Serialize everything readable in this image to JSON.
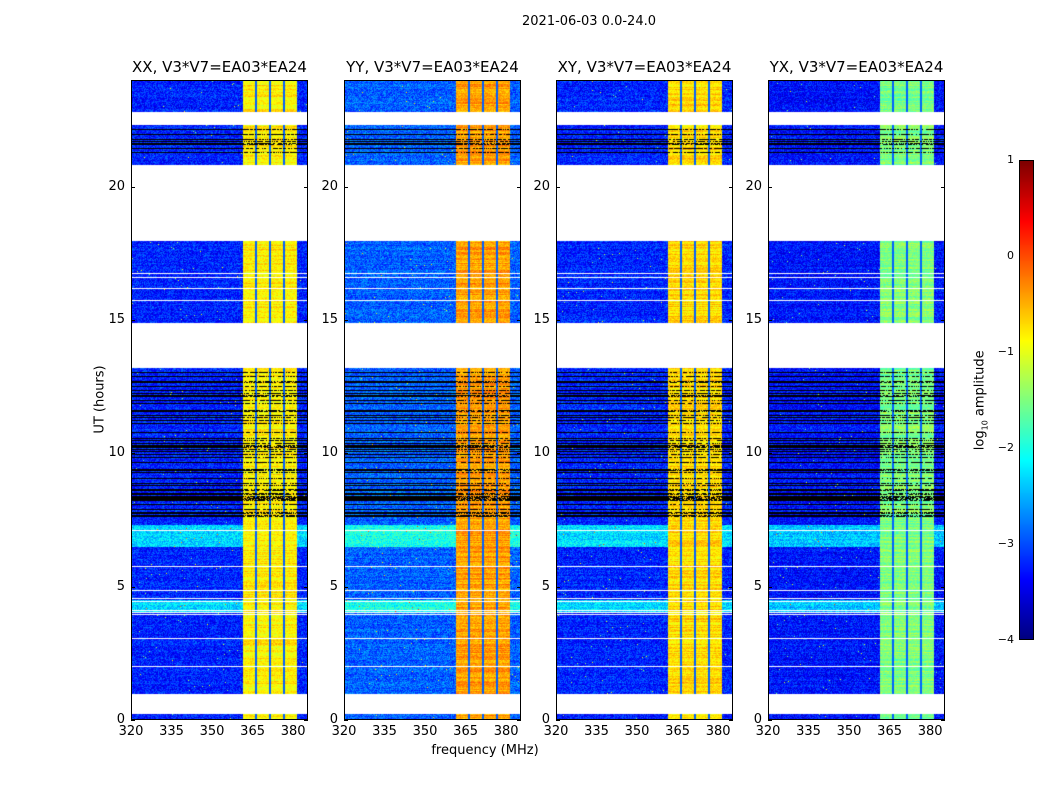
{
  "chart_data": {
    "type": "heatmap",
    "title": "2021-06-03 0.0-24.0",
    "xlabel": "frequency (MHz)",
    "ylabel": "UT (hours)",
    "xlim": [
      320,
      385.5
    ],
    "ylim": [
      0,
      24
    ],
    "xticks": [
      "320",
      "335",
      "350",
      "365",
      "380"
    ],
    "xtick_values": [
      320,
      335,
      350,
      365,
      380
    ],
    "yticks": [
      "0",
      "5",
      "10",
      "15",
      "20"
    ],
    "ytick_values": [
      0,
      5,
      10,
      15,
      20
    ],
    "panels": [
      {
        "title": "XX, V3*V7=EA03*EA24",
        "band_level": -0.8,
        "bg_level": -3.2
      },
      {
        "title": "YY, V3*V7=EA03*EA24",
        "band_level": -0.4,
        "bg_level": -2.9
      },
      {
        "title": "XY, V3*V7=EA03*EA24",
        "band_level": -0.7,
        "bg_level": -3.2
      },
      {
        "title": "YX, V3*V7=EA03*EA24",
        "band_level": -1.5,
        "bg_level": -3.3
      }
    ],
    "flagged_gaps_hours": [
      [
        0.23,
        0.98
      ],
      [
        13.2,
        14.9
      ],
      [
        17.96,
        20.8
      ],
      [
        22.3,
        22.8
      ]
    ],
    "bright_rows_hours": [
      [
        4.0,
        4.5
      ],
      [
        6.5,
        7.3
      ]
    ],
    "flagged_line_regions_hours": [
      [
        7.6,
        13.1
      ],
      [
        21.2,
        22.2
      ]
    ],
    "band_mhz": [
      361.5,
      381.5
    ],
    "band_separators_mhz": [
      366.3,
      371.5,
      376.7
    ],
    "colorbar": {
      "label": "log10 amplitude",
      "colormap": "jet",
      "range": [
        -4,
        1
      ],
      "ticks": [
        "1",
        "0",
        "−1",
        "−2",
        "−3",
        "−4"
      ],
      "tick_values": [
        1,
        0,
        -1,
        -2,
        -3,
        -4
      ]
    }
  }
}
